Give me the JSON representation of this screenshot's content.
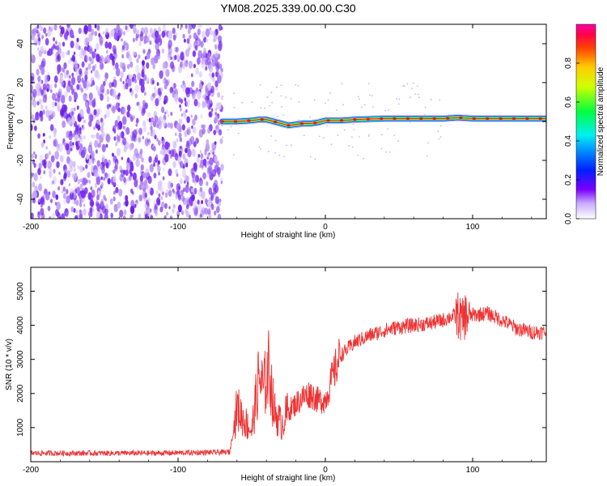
{
  "chart_data": [
    {
      "type": "heatmap",
      "title": "YM08.2025.339.00.00.C30",
      "xlabel": "Height of straight line (km)",
      "ylabel": "Frequency (Hz)",
      "xlim": [
        -200,
        150
      ],
      "ylim": [
        -50,
        50
      ],
      "xticks": [
        -200,
        -100,
        0,
        100
      ],
      "xtick_labels": [
        "-200",
        "-100",
        "0",
        "100"
      ],
      "yticks": [
        -40,
        -20,
        0,
        20,
        40
      ],
      "ytick_labels": [
        "-40",
        "-20",
        "0",
        "20",
        "40"
      ],
      "noise_region_x": [
        -200,
        -70
      ],
      "signal_band": {
        "x": [
          -70,
          -60,
          -50,
          -45,
          -40,
          -35,
          -30,
          -25,
          -20,
          -15,
          -10,
          -5,
          0,
          10,
          20,
          40,
          60,
          80,
          90,
          100,
          120,
          150
        ],
        "freq": [
          0,
          0,
          0.5,
          1,
          1,
          0,
          -1,
          -2,
          -1.5,
          -1,
          -1,
          -0.5,
          0.5,
          0.5,
          1,
          1.5,
          1.5,
          1.5,
          2,
          1.5,
          1.5,
          1.5
        ]
      },
      "colorbar": {
        "label": "Normalized spectral amplitude",
        "range": [
          0,
          1
        ],
        "ticks": [
          0.0,
          0.2,
          0.4,
          0.6,
          0.8
        ],
        "tick_labels": [
          "0.0",
          "0.2",
          "0.4",
          "0.6",
          "0.8"
        ]
      }
    },
    {
      "type": "line",
      "xlabel": "Height of straight line (km)",
      "ylabel": "SNR (10 * v/v)",
      "xlim": [
        -200,
        150
      ],
      "ylim": [
        0,
        5700
      ],
      "xticks": [
        -200,
        -100,
        0,
        100
      ],
      "xtick_labels": [
        "-200",
        "-100",
        "0",
        "100"
      ],
      "yticks": [
        1000,
        2000,
        3000,
        4000,
        5000
      ],
      "ytick_labels": [
        "1000",
        "2000",
        "3000",
        "4000",
        "5000"
      ],
      "color": "#ee3333",
      "series": [
        {
          "name": "SNR",
          "x": [
            -200,
            -180,
            -160,
            -140,
            -120,
            -100,
            -80,
            -65,
            -62,
            -60,
            -55,
            -50,
            -45,
            -42,
            -38,
            -35,
            -30,
            -25,
            -20,
            -15,
            -10,
            -5,
            0,
            5,
            10,
            15,
            20,
            30,
            40,
            50,
            60,
            70,
            80,
            85,
            90,
            93,
            95,
            97,
            100,
            110,
            120,
            130,
            140,
            150
          ],
          "y": [
            250,
            250,
            250,
            250,
            250,
            260,
            270,
            280,
            1000,
            1600,
            1200,
            900,
            2500,
            2100,
            2800,
            1500,
            1100,
            1500,
            1700,
            1900,
            2000,
            1800,
            1800,
            2500,
            3100,
            3300,
            3500,
            3700,
            3850,
            3950,
            4000,
            4050,
            4150,
            4250,
            4300,
            4100,
            4300,
            4250,
            4300,
            4350,
            4150,
            3900,
            3800,
            3800
          ]
        }
      ]
    }
  ]
}
